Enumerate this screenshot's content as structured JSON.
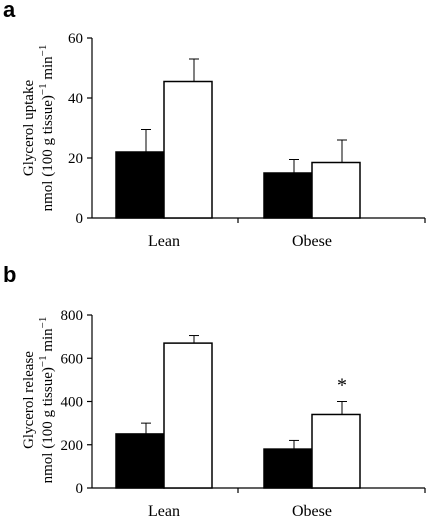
{
  "chart_data": [
    {
      "panel": "a",
      "type": "bar",
      "categories": [
        "Lean",
        "Obese"
      ],
      "series": [
        {
          "color": "#000000",
          "values": [
            22,
            15
          ],
          "errors": [
            7.5,
            4.5
          ]
        },
        {
          "color": "#ffffff",
          "values": [
            45.5,
            18.5
          ],
          "errors": [
            7.5,
            7.5
          ]
        }
      ],
      "ylabel_line1": "Glycerol uptake",
      "ylabel_line2_pre": "nmol (100 g tissue)",
      "ylabel_line2_sup1": "−1",
      "ylabel_line2_mid": " min",
      "ylabel_line2_sup2": "−1",
      "ylim": [
        0,
        60
      ],
      "yticks": [
        "0",
        "20",
        "40",
        "60"
      ],
      "ytick_values": [
        0,
        20,
        40,
        60
      ],
      "annotations": [],
      "grid": false,
      "legend": "none"
    },
    {
      "panel": "b",
      "type": "bar",
      "categories": [
        "Lean",
        "Obese"
      ],
      "series": [
        {
          "color": "#000000",
          "values": [
            250,
            180
          ],
          "errors": [
            50,
            40
          ]
        },
        {
          "color": "#ffffff",
          "values": [
            670,
            340
          ],
          "errors": [
            35,
            60
          ]
        }
      ],
      "ylabel_line1": "Glycerol release",
      "ylabel_line2_pre": "nmol (100 g tissue)",
      "ylabel_line2_sup1": "−1",
      "ylabel_line2_mid": " min",
      "ylabel_line2_sup2": "−1",
      "ylim": [
        0,
        800
      ],
      "yticks": [
        "0",
        "200",
        "400",
        "600",
        "800"
      ],
      "ytick_values": [
        0,
        200,
        400,
        600,
        800
      ],
      "annotations": [
        {
          "text": "*",
          "category": 1,
          "series": 1
        }
      ],
      "grid": false,
      "legend": "none"
    }
  ]
}
